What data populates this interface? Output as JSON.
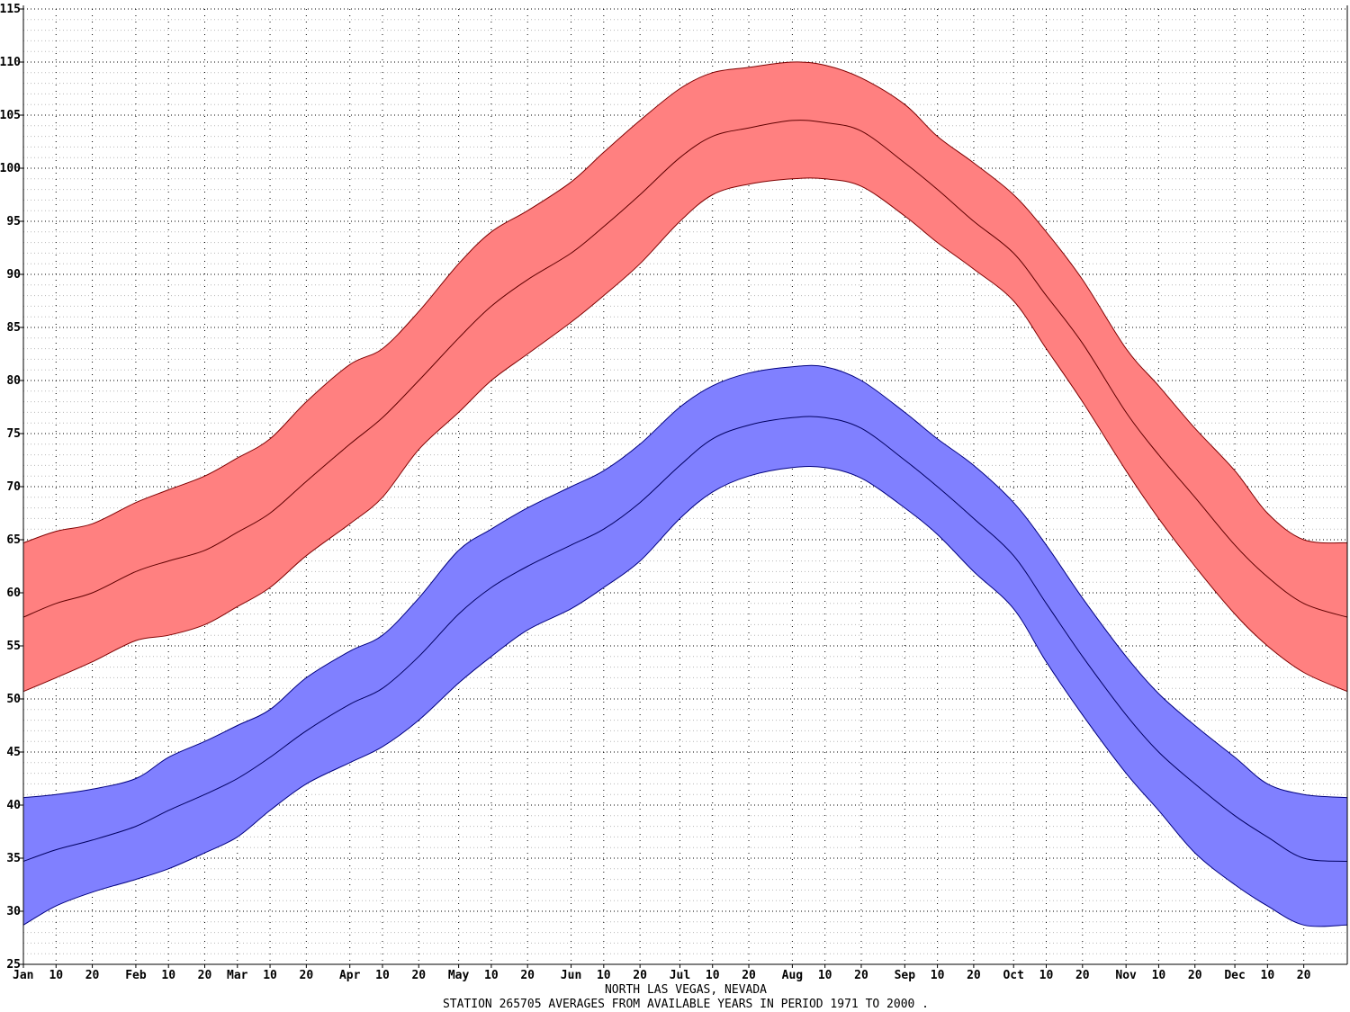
{
  "chart_data": {
    "type": "area",
    "title": "",
    "xlabel": "",
    "ylabel": "",
    "caption_lines": [
      "NORTH LAS VEGAS, NEVADA",
      "STATION 265705 AVERAGES FROM AVAILABLE YEARS IN PERIOD 1971 TO 2000 ."
    ],
    "ylim": [
      25,
      115
    ],
    "yticks": [
      25,
      30,
      35,
      40,
      45,
      50,
      55,
      60,
      65,
      70,
      75,
      80,
      85,
      90,
      95,
      100,
      105,
      110,
      115
    ],
    "xlim": [
      1,
      366
    ],
    "x_unit": "day of year",
    "xticks": [
      {
        "x": 1,
        "label": "Jan"
      },
      {
        "x": 10,
        "label": "10"
      },
      {
        "x": 20,
        "label": "20"
      },
      {
        "x": 32,
        "label": "Feb"
      },
      {
        "x": 41,
        "label": "10"
      },
      {
        "x": 51,
        "label": "20"
      },
      {
        "x": 60,
        "label": "Mar"
      },
      {
        "x": 69,
        "label": "10"
      },
      {
        "x": 79,
        "label": "20"
      },
      {
        "x": 91,
        "label": "Apr"
      },
      {
        "x": 100,
        "label": "10"
      },
      {
        "x": 110,
        "label": "20"
      },
      {
        "x": 121,
        "label": "May"
      },
      {
        "x": 130,
        "label": "10"
      },
      {
        "x": 140,
        "label": "20"
      },
      {
        "x": 152,
        "label": "Jun"
      },
      {
        "x": 161,
        "label": "10"
      },
      {
        "x": 171,
        "label": "20"
      },
      {
        "x": 182,
        "label": "Jul"
      },
      {
        "x": 191,
        "label": "10"
      },
      {
        "x": 201,
        "label": "20"
      },
      {
        "x": 213,
        "label": "Aug"
      },
      {
        "x": 222,
        "label": "10"
      },
      {
        "x": 232,
        "label": "20"
      },
      {
        "x": 244,
        "label": "Sep"
      },
      {
        "x": 253,
        "label": "10"
      },
      {
        "x": 263,
        "label": "20"
      },
      {
        "x": 274,
        "label": "Oct"
      },
      {
        "x": 283,
        "label": "10"
      },
      {
        "x": 293,
        "label": "20"
      },
      {
        "x": 305,
        "label": "Nov"
      },
      {
        "x": 314,
        "label": "10"
      },
      {
        "x": 324,
        "label": "20"
      },
      {
        "x": 335,
        "label": "Dec"
      },
      {
        "x": 344,
        "label": "10"
      },
      {
        "x": 354,
        "label": "20"
      }
    ],
    "grid": true,
    "colors": {
      "max_band": "#ff8080",
      "max_band_edge": "#800000",
      "max_line": "#600000",
      "min_band": "#8080ff",
      "min_band_edge": "#000080",
      "min_line": "#000060",
      "grid": "#000000",
      "axis": "#000000"
    },
    "series": [
      {
        "x": [
          1,
          10,
          20,
          32,
          41,
          51,
          60,
          69,
          79,
          91,
          100,
          110,
          121,
          130,
          140,
          152,
          161,
          171,
          182,
          191,
          201,
          213,
          222,
          232,
          244,
          253,
          263,
          274,
          283,
          293,
          305,
          314,
          324,
          335,
          344,
          354,
          366
        ],
        "mean": [
          57.7,
          59.0,
          60.0,
          62.0,
          63.0,
          64.0,
          65.7,
          67.5,
          70.5,
          74.0,
          76.5,
          80.0,
          84.0,
          87.0,
          89.5,
          92.0,
          94.5,
          97.5,
          101.0,
          103.0,
          103.8,
          104.5,
          104.3,
          103.5,
          100.5,
          98.0,
          95.0,
          92.0,
          88.0,
          83.5,
          77.0,
          73.0,
          69.0,
          64.5,
          61.5,
          59.0,
          57.7
        ],
        "upper": [
          64.7,
          65.8,
          66.5,
          68.5,
          69.7,
          71.0,
          72.7,
          74.5,
          78.0,
          81.5,
          83.0,
          86.5,
          91.0,
          94.0,
          96.0,
          98.7,
          101.5,
          104.5,
          107.5,
          109.0,
          109.5,
          110.0,
          109.7,
          108.5,
          106.0,
          103.0,
          100.5,
          97.5,
          94.0,
          89.5,
          83.0,
          79.5,
          75.5,
          71.5,
          67.5,
          65.0,
          64.7
        ],
        "lower": [
          50.7,
          52.0,
          53.5,
          55.5,
          56.0,
          57.0,
          58.7,
          60.5,
          63.5,
          66.5,
          69.0,
          73.5,
          77.0,
          80.0,
          82.5,
          85.5,
          88.0,
          91.0,
          95.0,
          97.5,
          98.5,
          99.0,
          99.0,
          98.3,
          95.5,
          93.0,
          90.5,
          87.5,
          83.0,
          78.0,
          71.5,
          67.0,
          62.5,
          58.0,
          55.0,
          52.5,
          50.7
        ]
      },
      {
        "x": [
          1,
          10,
          20,
          32,
          41,
          51,
          60,
          69,
          79,
          91,
          100,
          110,
          121,
          130,
          140,
          152,
          161,
          171,
          182,
          191,
          201,
          213,
          222,
          232,
          244,
          253,
          263,
          274,
          283,
          293,
          305,
          314,
          324,
          335,
          344,
          354,
          366
        ],
        "mean": [
          34.7,
          35.8,
          36.7,
          38.0,
          39.5,
          41.0,
          42.5,
          44.5,
          47.0,
          49.5,
          51.0,
          54.0,
          58.0,
          60.5,
          62.5,
          64.5,
          66.0,
          68.5,
          72.0,
          74.5,
          75.8,
          76.5,
          76.5,
          75.5,
          72.5,
          70.0,
          67.0,
          63.5,
          59.0,
          54.0,
          48.5,
          45.0,
          42.0,
          39.0,
          37.0,
          35.0,
          34.7
        ],
        "upper": [
          40.7,
          41.0,
          41.5,
          42.5,
          44.5,
          46.0,
          47.5,
          49.0,
          52.0,
          54.5,
          56.0,
          59.5,
          64.0,
          66.0,
          68.0,
          70.0,
          71.5,
          74.0,
          77.5,
          79.5,
          80.7,
          81.3,
          81.3,
          80.0,
          77.0,
          74.5,
          72.0,
          68.5,
          64.5,
          59.5,
          54.0,
          50.5,
          47.5,
          44.5,
          42.0,
          41.0,
          40.7
        ],
        "lower": [
          28.7,
          30.5,
          31.8,
          33.0,
          34.0,
          35.5,
          37.0,
          39.5,
          42.0,
          44.0,
          45.5,
          48.0,
          51.5,
          54.0,
          56.5,
          58.5,
          60.5,
          63.0,
          67.0,
          69.5,
          71.0,
          71.8,
          71.8,
          70.8,
          68.0,
          65.5,
          62.0,
          58.5,
          53.5,
          48.5,
          43.0,
          39.5,
          35.5,
          32.5,
          30.5,
          28.7,
          28.7
        ]
      }
    ]
  }
}
